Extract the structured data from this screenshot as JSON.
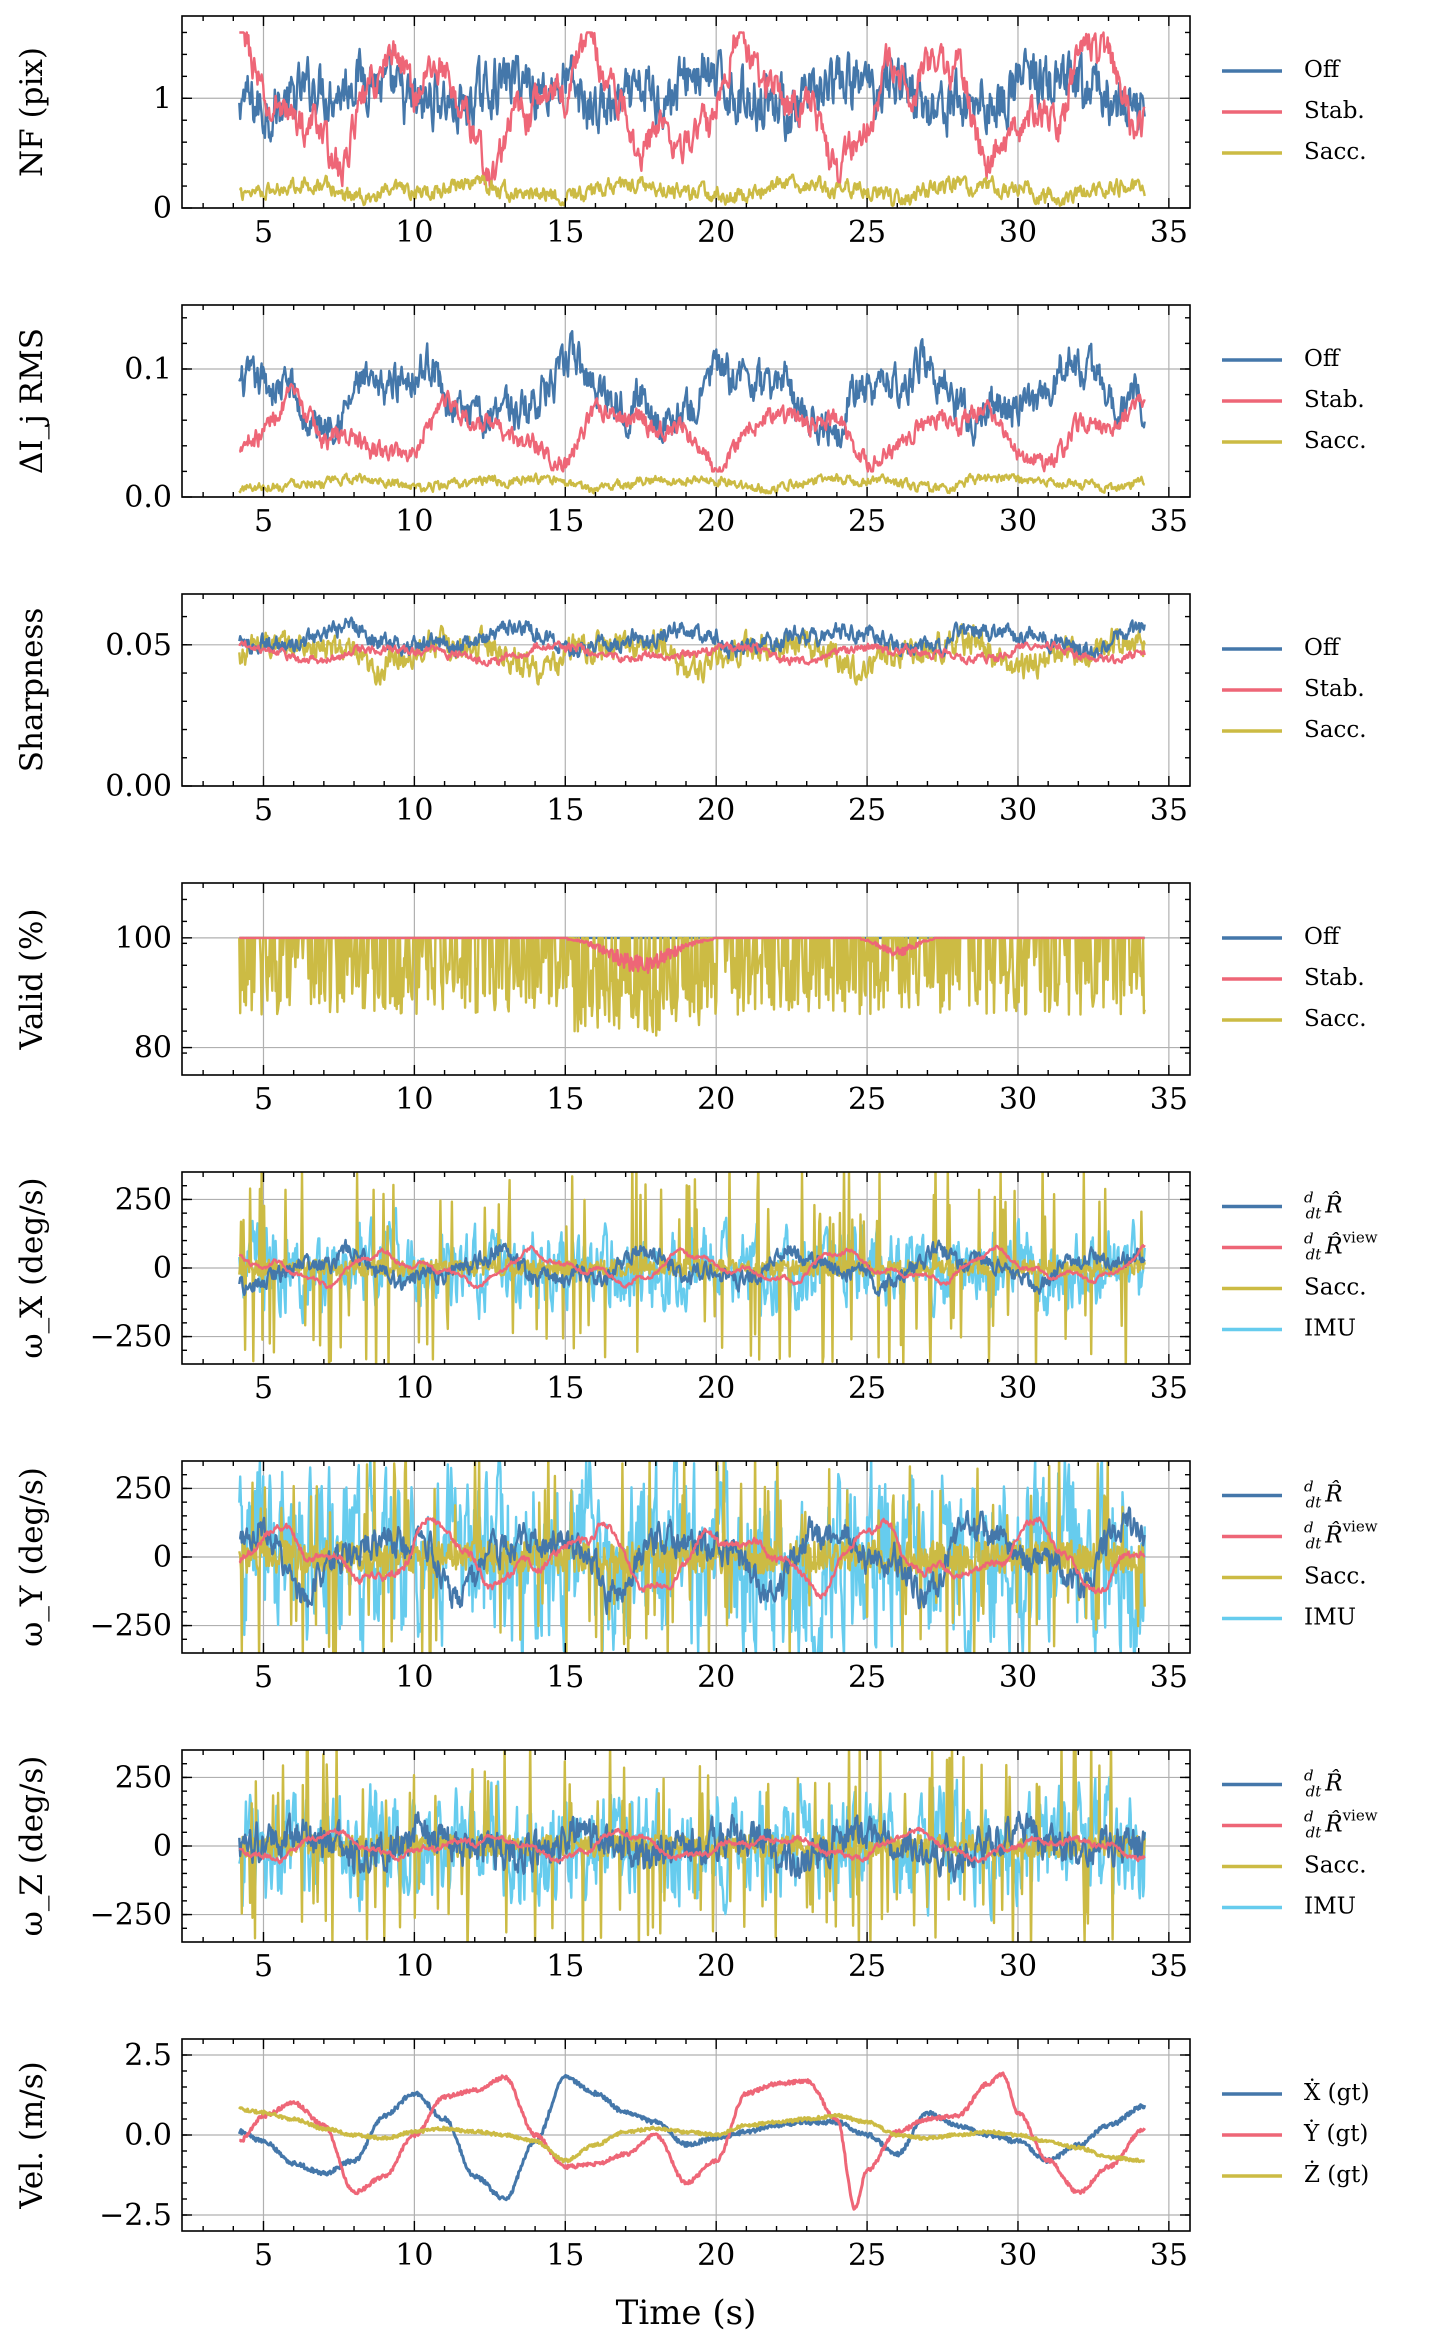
{
  "colors": {
    "blue": "#4477aa",
    "red": "#ee6677",
    "yellow": "#ccbb44",
    "cyan": "#66ccee",
    "grid": "#b0b0b0",
    "axis": "#000000"
  },
  "xaxis": {
    "label": "Time (s)",
    "ticks": [
      5,
      10,
      15,
      20,
      25,
      30,
      35
    ],
    "tick_labels": [
      "5",
      "10",
      "15",
      "20",
      "25",
      "30",
      "35"
    ],
    "xlim": [
      2.3,
      35.7
    ],
    "data_range": [
      4.2,
      34.2
    ]
  },
  "chart_data": [
    {
      "id": "nf",
      "type": "line",
      "ylabel": "NF (pix)",
      "ylim": [
        0,
        1.75
      ],
      "yticks": [
        0,
        1
      ],
      "ytick_labels": [
        "0",
        "1"
      ],
      "legend": [
        "Off",
        "Stab.",
        "Sacc."
      ],
      "series": [
        {
          "name": "Off",
          "color": "blue",
          "mean": 1.05,
          "amp": 0.2,
          "slow": 0.12,
          "clip": [
            0.55,
            1.45
          ]
        },
        {
          "name": "Stab.",
          "color": "red",
          "mean": 0.95,
          "amp": 0.12,
          "slow": 0.4,
          "clip": [
            0.2,
            1.6
          ]
        },
        {
          "name": "Sacc.",
          "color": "yellow",
          "mean": 0.16,
          "amp": 0.06,
          "slow": 0.05,
          "clip": [
            0.02,
            0.6
          ]
        }
      ]
    },
    {
      "id": "di",
      "type": "line",
      "ylabel": "ΔI_j RMS",
      "ylim": [
        0,
        0.15
      ],
      "yticks": [
        0,
        0.1
      ],
      "ytick_labels": [
        "0.0",
        "0.1"
      ],
      "legend": [
        "Off",
        "Stab.",
        "Sacc."
      ],
      "series": [
        {
          "name": "Off",
          "color": "blue",
          "mean": 0.08,
          "amp": 0.012,
          "slow": 0.018,
          "clip": [
            0.035,
            0.148
          ]
        },
        {
          "name": "Stab.",
          "color": "red",
          "mean": 0.05,
          "amp": 0.006,
          "slow": 0.017,
          "clip": [
            0.02,
            0.11
          ]
        },
        {
          "name": "Sacc.",
          "color": "yellow",
          "mean": 0.011,
          "amp": 0.003,
          "slow": 0.003,
          "clip": [
            0.003,
            0.025
          ]
        }
      ]
    },
    {
      "id": "sharp",
      "type": "line",
      "ylabel": "Sharpness",
      "ylim": [
        0,
        0.068
      ],
      "yticks": [
        0,
        0.05
      ],
      "ytick_labels": [
        "0.00",
        "0.05"
      ],
      "legend": [
        "Off",
        "Stab.",
        "Sacc."
      ],
      "series": [
        {
          "name": "Sacc.",
          "color": "yellow",
          "mean": 0.047,
          "amp": 0.004,
          "slow": 0.004,
          "clip": [
            0.036,
            0.065
          ]
        },
        {
          "name": "Off",
          "color": "blue",
          "mean": 0.052,
          "amp": 0.0025,
          "slow": 0.003,
          "clip": [
            0.045,
            0.065
          ]
        },
        {
          "name": "Stab.",
          "color": "red",
          "mean": 0.047,
          "amp": 0.0012,
          "slow": 0.002,
          "clip": [
            0.04,
            0.058
          ]
        }
      ]
    },
    {
      "id": "valid",
      "type": "line",
      "ylabel": "Valid (%)",
      "ylim": [
        75,
        110
      ],
      "yticks": [
        80,
        100
      ],
      "ytick_labels": [
        "80",
        "100"
      ],
      "legend": [
        "Off",
        "Stab.",
        "Sacc."
      ],
      "series": [
        {
          "name": "Off",
          "color": "blue",
          "mode": "flat",
          "mean": 100
        },
        {
          "name": "Sacc.",
          "color": "yellow",
          "mode": "drops",
          "mean": 100,
          "drop_low": 86,
          "drop_high": 97,
          "rate": 0.45
        },
        {
          "name": "Stab.",
          "color": "red",
          "mode": "dips",
          "mean": 100
        }
      ]
    },
    {
      "id": "wx",
      "type": "line",
      "ylabel": "ω_X (deg/s)",
      "ylim": [
        -350,
        350
      ],
      "yticks": [
        -250,
        0,
        250
      ],
      "ytick_labels": [
        "−250",
        "0",
        "250"
      ],
      "legend": [
        "d/dt R̂",
        "d/dt R̂^view",
        "Sacc.",
        "IMU"
      ],
      "series": [
        {
          "name": "IMU",
          "color": "cyan",
          "mean": 0,
          "amp": 110,
          "slow": 20,
          "clip": [
            -360,
            360
          ]
        },
        {
          "name": "Sacc.",
          "color": "yellow",
          "mode": "spikes",
          "mean": 0,
          "amp": 30,
          "rate": 0.1
        },
        {
          "name": "d/dt R̂",
          "color": "blue",
          "mean": 0,
          "amp": 25,
          "slow": 45,
          "clip": [
            -200,
            200
          ]
        },
        {
          "name": "d/dt R̂^view",
          "color": "red",
          "mean": 0,
          "amp": 6,
          "slow": 45,
          "clip": [
            -200,
            200
          ]
        }
      ]
    },
    {
      "id": "wy",
      "type": "line",
      "ylabel": "ω_Y (deg/s)",
      "ylim": [
        -350,
        350
      ],
      "yticks": [
        -250,
        0,
        250
      ],
      "ytick_labels": [
        "−250",
        "0",
        "250"
      ],
      "legend": [
        "d/dt R̂",
        "d/dt R̂^view",
        "Sacc.",
        "IMU"
      ],
      "series": [
        {
          "name": "IMU",
          "color": "cyan",
          "mean": 0,
          "amp": 250,
          "slow": 30,
          "clip": [
            -360,
            360
          ]
        },
        {
          "name": "Sacc.",
          "color": "yellow",
          "mode": "spikes",
          "mean": 0,
          "amp": 60,
          "rate": 0.12
        },
        {
          "name": "d/dt R̂",
          "color": "blue",
          "mean": 0,
          "amp": 45,
          "slow": 90,
          "clip": [
            -300,
            300
          ]
        },
        {
          "name": "d/dt R̂^view",
          "color": "red",
          "mean": 0,
          "amp": 10,
          "slow": 90,
          "clip": [
            -300,
            300
          ]
        }
      ]
    },
    {
      "id": "wz",
      "type": "line",
      "ylabel": "ω_Z (deg/s)",
      "ylim": [
        -350,
        350
      ],
      "yticks": [
        -250,
        0,
        250
      ],
      "ytick_labels": [
        "−250",
        "0",
        "250"
      ],
      "legend": [
        "d/dt R̂",
        "d/dt R̂^view",
        "Sacc.",
        "IMU"
      ],
      "series": [
        {
          "name": "IMU",
          "color": "cyan",
          "mean": 0,
          "amp": 150,
          "slow": 20,
          "clip": [
            -360,
            360
          ]
        },
        {
          "name": "Sacc.",
          "color": "yellow",
          "mode": "spikes",
          "mean": 0,
          "amp": 40,
          "rate": 0.12
        },
        {
          "name": "d/dt R̂",
          "color": "blue",
          "mean": 0,
          "amp": 55,
          "slow": 35,
          "clip": [
            -280,
            280
          ]
        },
        {
          "name": "d/dt R̂^view",
          "color": "red",
          "mean": 0,
          "amp": 8,
          "slow": 35,
          "clip": [
            -200,
            200
          ]
        }
      ]
    },
    {
      "id": "vel",
      "type": "line",
      "ylabel": "Vel. (m/s)",
      "ylim": [
        -3,
        3
      ],
      "yticks": [
        -2.5,
        0,
        2.5
      ],
      "ytick_labels": [
        "−2.5",
        "0.0",
        "2.5"
      ],
      "legend": [
        "Ẋ (gt)",
        "Ẏ (gt)",
        "Ż (gt)"
      ],
      "series": [
        {
          "name": "Ẋ (gt)",
          "color": "blue",
          "mode": "knots",
          "noise": 0.07,
          "t": [
            4.2,
            5,
            6,
            7,
            8,
            9,
            10,
            11,
            12,
            13,
            14,
            15,
            16,
            17,
            18,
            19,
            20,
            21,
            22,
            23,
            24,
            25,
            26,
            27,
            28,
            29,
            30,
            31,
            32,
            33,
            34.2
          ],
          "y": [
            0.1,
            -0.2,
            -0.9,
            -1.2,
            -0.8,
            0.6,
            1.3,
            0.5,
            -1.3,
            -2.0,
            -0.2,
            1.8,
            1.3,
            0.7,
            0.4,
            -0.3,
            -0.1,
            0.1,
            0.3,
            0.4,
            0.4,
            0.0,
            -0.6,
            0.7,
            0.3,
            0.0,
            -0.2,
            -0.8,
            -0.3,
            0.3,
            0.9
          ]
        },
        {
          "name": "Ẏ (gt)",
          "color": "red",
          "mode": "knots",
          "noise": 0.06,
          "t": [
            4.2,
            5,
            6,
            7,
            8,
            9,
            10,
            11,
            12,
            13,
            14,
            15,
            16,
            17,
            18,
            19,
            20,
            21,
            22,
            23,
            24,
            24.6,
            25,
            26,
            27,
            28,
            29,
            29.5,
            30,
            31,
            32,
            33,
            34.2
          ],
          "y": [
            -0.2,
            0.6,
            1.0,
            0.3,
            -1.8,
            -1.3,
            0.0,
            1.2,
            1.4,
            1.8,
            0.0,
            -1.0,
            -0.9,
            -0.6,
            0.0,
            -1.5,
            -0.8,
            1.3,
            1.6,
            1.7,
            0.5,
            -2.3,
            -1.1,
            0.1,
            0.5,
            0.6,
            1.6,
            1.9,
            0.7,
            -0.8,
            -1.8,
            -1.0,
            0.2
          ]
        },
        {
          "name": "Ż (gt)",
          "color": "yellow",
          "mode": "knots",
          "noise": 0.05,
          "t": [
            4.2,
            5,
            6,
            7,
            8,
            9,
            10,
            11,
            12,
            13,
            14,
            15,
            16,
            17,
            18,
            19,
            20,
            21,
            22,
            23,
            24,
            25,
            26,
            27,
            28,
            29,
            30,
            31,
            32,
            33,
            34.2
          ],
          "y": [
            0.8,
            0.7,
            0.5,
            0.2,
            0.0,
            -0.1,
            0.1,
            0.2,
            0.1,
            0.0,
            -0.2,
            -0.8,
            -0.3,
            0.1,
            0.2,
            0.1,
            0.0,
            0.3,
            0.4,
            0.5,
            0.6,
            0.4,
            0.0,
            -0.1,
            0.0,
            0.1,
            0.0,
            -0.2,
            -0.4,
            -0.7,
            -0.8
          ]
        }
      ]
    }
  ]
}
